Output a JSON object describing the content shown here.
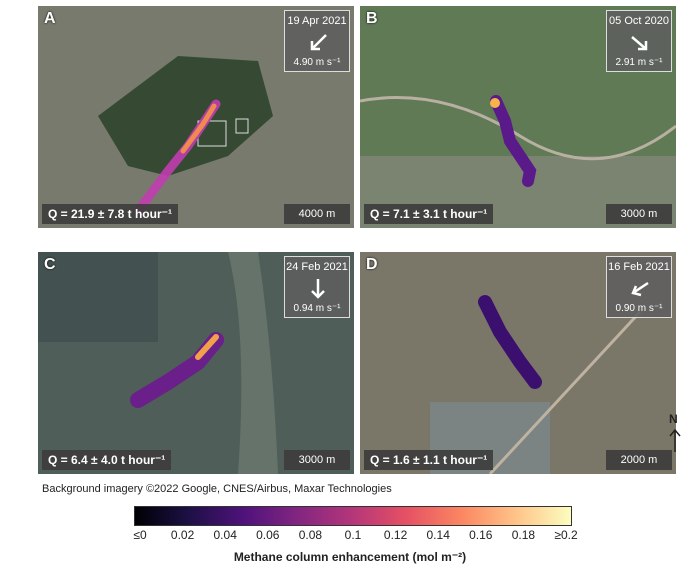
{
  "panels": [
    {
      "letter": "A",
      "date": "19 Apr 2021",
      "speed": "4.90 m s⁻¹",
      "emission": "Q = 21.9 ± 7.8 t hour⁻¹",
      "scale": "4000 m"
    },
    {
      "letter": "B",
      "date": "05 Oct 2020",
      "speed": "2.91 m s⁻¹",
      "emission": "Q = 7.1 ± 3.1 t hour⁻¹",
      "scale": "3000 m"
    },
    {
      "letter": "C",
      "date": "24 Feb 2021",
      "speed": "0.94 m s⁻¹",
      "emission": "Q = 6.4 ± 4.0 t hour⁻¹",
      "scale": "3000 m"
    },
    {
      "letter": "D",
      "date": "16 Feb 2021",
      "speed": "0.90 m s⁻¹",
      "emission": "Q = 1.6 ± 1.1 t hour⁻¹",
      "scale": "2000 m"
    }
  ],
  "credit": "Background imagery ©2022 Google, CNES/Airbus, Maxar Technologies",
  "colorbar": {
    "ticks": [
      "≤0",
      "0.02",
      "0.04",
      "0.06",
      "0.08",
      "0.1",
      "0.12",
      "0.14",
      "0.16",
      "0.18",
      "≥0.2"
    ],
    "title": "Methane column enhancement (mol m⁻²)",
    "colors": [
      "#000004",
      "#fcfdbf"
    ]
  },
  "north": "N"
}
